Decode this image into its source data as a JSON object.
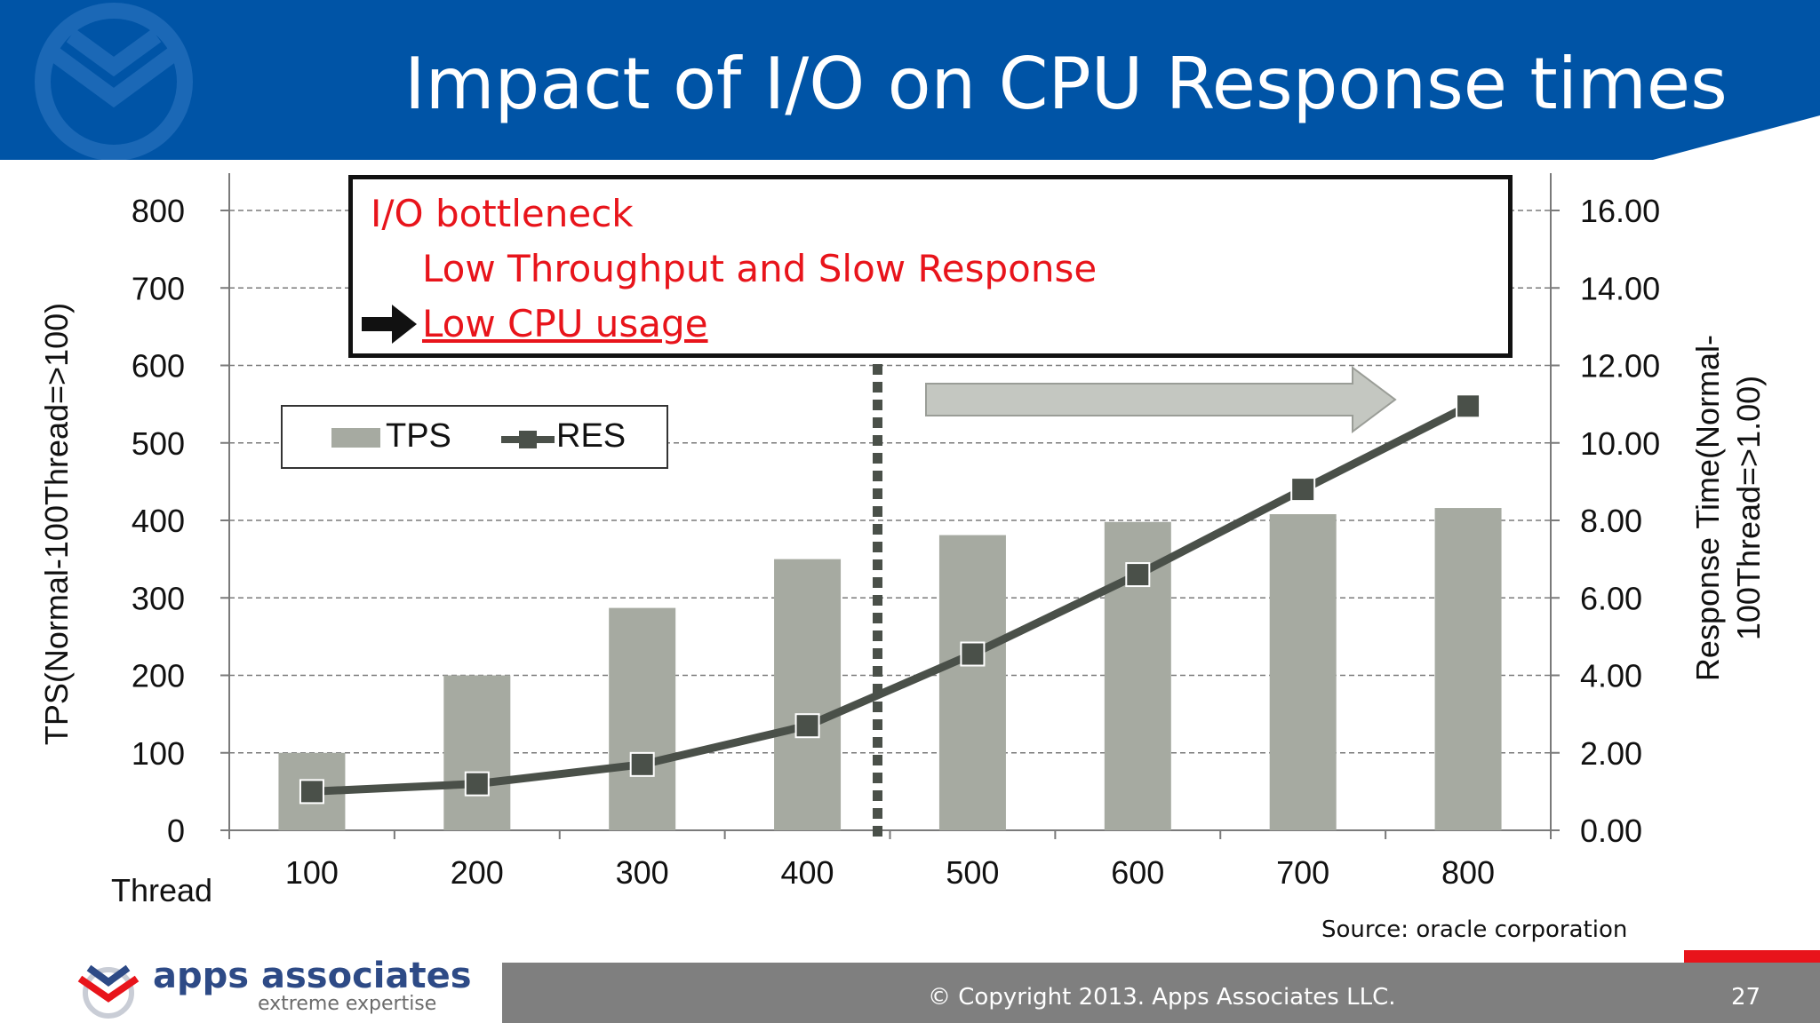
{
  "slide": {
    "title": "Impact of I/O on CPU Response times",
    "source": "Source: oracle corporation",
    "copyright": "© Copyright 2013. Apps Associates LLC.",
    "page_number": "27"
  },
  "brand": {
    "name": "apps associates",
    "tagline": "extreme expertise"
  },
  "callout": {
    "line1": "I/O bottleneck",
    "line2": "Low Throughput and Slow Response",
    "line3": "Low CPU usage"
  },
  "colors": {
    "header_blue": "#0054a6",
    "bar_gray": "#a6aaa1",
    "line_dark": "#4a5049",
    "callout_red": "#e8141b",
    "footer_gray": "#7f7f7f",
    "accent_red": "#e8141b"
  },
  "chart_data": {
    "type": "bar",
    "categories": [
      "100",
      "200",
      "300",
      "400",
      "500",
      "600",
      "700",
      "800"
    ],
    "xlabel": "Thread",
    "ylabel": "TPS(Normal-100Thread=>100)",
    "y2label": "Response Time(Normal-100Thread=>1.00)",
    "ylim": [
      0,
      800
    ],
    "y2lim": [
      0,
      16
    ],
    "yticks": [
      "0",
      "100",
      "200",
      "300",
      "400",
      "500",
      "600",
      "700",
      "800"
    ],
    "y2ticks": [
      "0.00",
      "2.00",
      "4.00",
      "6.00",
      "8.00",
      "10.00",
      "12.00",
      "14.00",
      "16.00"
    ],
    "series": [
      {
        "name": "TPS",
        "type": "bar",
        "axis": "left",
        "values": [
          100,
          200,
          287,
          350,
          381,
          398,
          408,
          416
        ]
      },
      {
        "name": "RES",
        "type": "line",
        "axis": "right",
        "values": [
          1.0,
          1.2,
          1.7,
          2.7,
          4.55,
          6.6,
          8.8,
          10.95
        ]
      }
    ],
    "grid": true,
    "legend": "top-left",
    "annotation": "vertical dotted divider between 400 and 500 threads; right-pointing arrow toward 800"
  }
}
